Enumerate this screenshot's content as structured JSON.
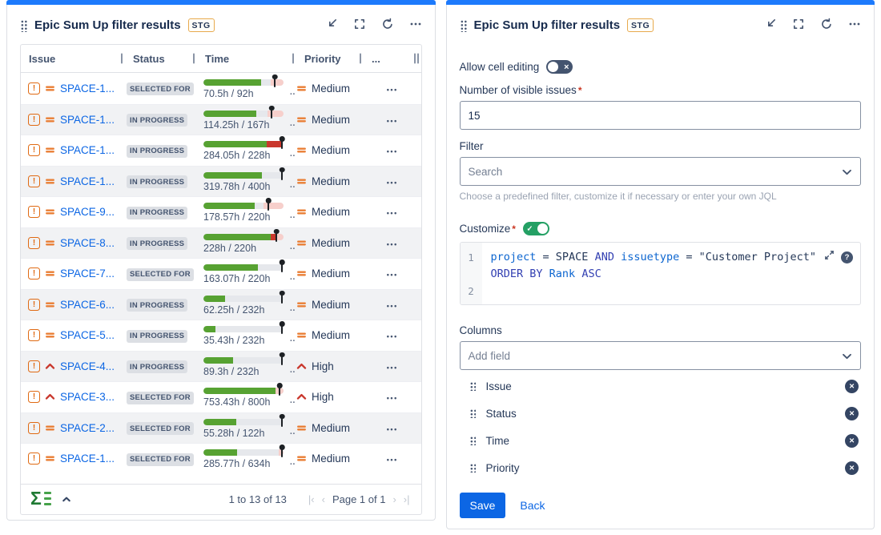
{
  "colors": {
    "accent_blue": "#1D7AFC",
    "link_blue": "#0C66E4",
    "save_button_blue": "#0C66E4",
    "bar_green": "#57A232",
    "bar_over_red": "#C9372C",
    "bar_pink": "#F7CFCB",
    "bar_track": "#E6E8EC",
    "status_lozenge_bg": "#DCDFE4",
    "status_lozenge_text": "#44546F",
    "priority_medium_orange": "#E97D33",
    "priority_high_red": "#C9372C",
    "issue_type_orange": "#E06A13",
    "toggle_off": "#44546F",
    "toggle_on": "#24A064",
    "badge_border_gold": "#E8AA4E"
  },
  "left_panel": {
    "title": "Epic Sum Up filter results",
    "badge": "STG",
    "header_icons": [
      "collapse-icon",
      "fullscreen-icon",
      "refresh-icon",
      "more-icon"
    ],
    "table": {
      "columns": [
        "Issue",
        "Status",
        "Time",
        "Priority",
        "..."
      ],
      "time_truncation": "..",
      "rows": [
        {
          "key": "SPACE-1...",
          "status": "SELECTED FOR",
          "time": "70.5h / 92h",
          "priority": "Medium",
          "level": "medium",
          "bar": {
            "green": 72,
            "red": 0,
            "pink": 16,
            "pin": 88
          }
        },
        {
          "key": "SPACE-1...",
          "status": "IN PROGRESS",
          "time": "114.25h / 167h",
          "priority": "Medium",
          "level": "medium",
          "bar": {
            "green": 66,
            "red": 0,
            "pink": 20,
            "pin": 84
          }
        },
        {
          "key": "SPACE-1...",
          "status": "IN PROGRESS",
          "time": "284.05h / 228h",
          "priority": "Medium",
          "level": "medium",
          "bar": {
            "green": 79,
            "red": 18,
            "pink": 0,
            "pin": 97
          }
        },
        {
          "key": "SPACE-1...",
          "status": "IN PROGRESS",
          "time": "319.78h / 400h",
          "priority": "Medium",
          "level": "medium",
          "bar": {
            "green": 73,
            "red": 0,
            "pink": 0,
            "pin": 97
          }
        },
        {
          "key": "SPACE-9...",
          "status": "IN PROGRESS",
          "time": "178.57h / 220h",
          "priority": "Medium",
          "level": "medium",
          "bar": {
            "green": 64,
            "red": 0,
            "pink": 25,
            "pin": 80
          }
        },
        {
          "key": "SPACE-8...",
          "status": "IN PROGRESS",
          "time": "228h / 220h",
          "priority": "Medium",
          "level": "medium",
          "bar": {
            "green": 84,
            "red": 6,
            "pink": 10,
            "pin": 90
          }
        },
        {
          "key": "SPACE-7...",
          "status": "SELECTED FOR",
          "time": "163.07h / 220h",
          "priority": "Medium",
          "level": "medium",
          "bar": {
            "green": 68,
            "red": 0,
            "pink": 0,
            "pin": 97
          }
        },
        {
          "key": "SPACE-6...",
          "status": "IN PROGRESS",
          "time": "62.25h / 232h",
          "priority": "Medium",
          "level": "medium",
          "bar": {
            "green": 27,
            "red": 0,
            "pink": 0,
            "pin": 97
          }
        },
        {
          "key": "SPACE-5...",
          "status": "IN PROGRESS",
          "time": "35.43h / 232h",
          "priority": "Medium",
          "level": "medium",
          "bar": {
            "green": 15,
            "red": 0,
            "pink": 0,
            "pin": 97
          }
        },
        {
          "key": "SPACE-4...",
          "status": "IN PROGRESS",
          "time": "89.3h / 232h",
          "priority": "High",
          "level": "high",
          "bar": {
            "green": 37,
            "red": 0,
            "pink": 0,
            "pin": 97
          }
        },
        {
          "key": "SPACE-3...",
          "status": "SELECTED FOR",
          "time": "753.43h / 800h",
          "priority": "High",
          "level": "high",
          "bar": {
            "green": 90,
            "red": 0,
            "pink": 10,
            "pin": 94
          }
        },
        {
          "key": "SPACE-2...",
          "status": "SELECTED FOR",
          "time": "55.28h / 122h",
          "priority": "Medium",
          "level": "medium",
          "bar": {
            "green": 41,
            "red": 0,
            "pink": 0,
            "pin": 97
          }
        },
        {
          "key": "SPACE-1...",
          "status": "SELECTED FOR",
          "time": "285.77h / 634h",
          "priority": "Medium",
          "level": "medium",
          "bar": {
            "green": 42,
            "red": 0,
            "pink": 6,
            "pin": 97
          }
        }
      ]
    },
    "footer": {
      "range_text": "1 to 13 of 13",
      "page_text": "Page 1 of 1"
    }
  },
  "right_panel": {
    "title": "Epic Sum Up filter results",
    "badge": "STG",
    "header_icons": [
      "collapse-icon",
      "fullscreen-icon",
      "refresh-icon",
      "more-icon"
    ],
    "form": {
      "cell_editing_label": "Allow cell editing",
      "required_marker": "*",
      "visible_issues_label": "Number of visible issues",
      "visible_issues_value": "15",
      "filter_label": "Filter",
      "filter_placeholder": "Search",
      "filter_help": "Choose a predefined filter, customize it if necessary or enter your own JQL",
      "customize_label": "Customize",
      "jql_line_numbers": [
        "1",
        "2"
      ],
      "jql_tokens": [
        {
          "text": "project",
          "type": "field"
        },
        {
          "text": " = ",
          "type": "plain"
        },
        {
          "text": "SPACE ",
          "type": "plain"
        },
        {
          "text": "AND",
          "type": "keyword"
        },
        {
          "text": " ",
          "type": "plain"
        },
        {
          "text": "issuetype",
          "type": "field"
        },
        {
          "text": " = ",
          "type": "plain"
        },
        {
          "text": "\"Customer Project\" ",
          "type": "plain"
        },
        {
          "text": "ORDER BY",
          "type": "keyword"
        },
        {
          "text": " ",
          "type": "plain"
        },
        {
          "text": "Rank",
          "type": "field"
        },
        {
          "text": " ",
          "type": "plain"
        },
        {
          "text": "ASC",
          "type": "keyword"
        }
      ],
      "columns_label": "Columns",
      "add_field_placeholder": "Add field",
      "column_items": [
        "Issue",
        "Status",
        "Time",
        "Priority"
      ],
      "save_label": "Save",
      "back_label": "Back"
    }
  }
}
